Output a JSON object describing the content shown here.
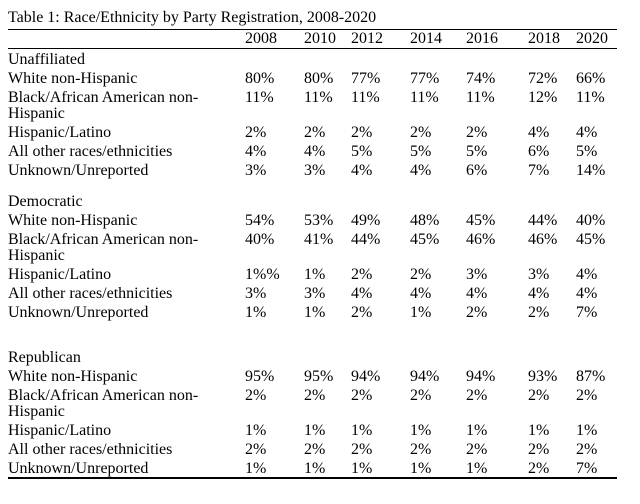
{
  "table": {
    "title": "Table 1: Race/Ethnicity by Party Registration, 2008-2020",
    "years": [
      "2008",
      "2010",
      "2012",
      "2014",
      "2016",
      "2018",
      "2020"
    ],
    "sections": [
      {
        "name": "Unaffiliated",
        "rows": [
          {
            "label": "White non-Hispanic",
            "values": [
              "80%",
              "80%",
              "77%",
              "77%",
              "74%",
              "72%",
              "66%"
            ]
          },
          {
            "label": "Black/African American non-Hispanic",
            "values": [
              "11%",
              "11%",
              "11%",
              "11%",
              "11%",
              "12%",
              "11%"
            ]
          },
          {
            "label": "Hispanic/Latino",
            "values": [
              "2%",
              "2%",
              "2%",
              "2%",
              "2%",
              "4%",
              "4%"
            ]
          },
          {
            "label": "All other races/ethnicities",
            "values": [
              "4%",
              "4%",
              "5%",
              "5%",
              "5%",
              "6%",
              "5%"
            ]
          },
          {
            "label": "Unknown/Unreported",
            "values": [
              "3%",
              "3%",
              "4%",
              "4%",
              "6%",
              "7%",
              "14%"
            ]
          }
        ]
      },
      {
        "name": "Democratic",
        "rows": [
          {
            "label": "White non-Hispanic",
            "values": [
              "54%",
              "53%",
              "49%",
              "48%",
              "45%",
              "44%",
              "40%"
            ]
          },
          {
            "label": "Black/African American non-Hispanic",
            "values": [
              "40%",
              "41%",
              "44%",
              "45%",
              "46%",
              "46%",
              "45%"
            ]
          },
          {
            "label": "Hispanic/Latino",
            "values": [
              "1%%",
              "1%",
              "2%",
              "2%",
              "3%",
              "3%",
              "4%"
            ]
          },
          {
            "label": "All other races/ethnicities",
            "values": [
              "3%",
              "3%",
              "4%",
              "4%",
              "4%",
              "4%",
              "4%"
            ]
          },
          {
            "label": "Unknown/Unreported",
            "values": [
              "1%",
              "1%",
              "2%",
              "1%",
              "2%",
              "2%",
              "7%"
            ]
          }
        ]
      },
      {
        "name": "Republican",
        "rows": [
          {
            "label": "White non-Hispanic",
            "values": [
              "95%",
              "95%",
              "94%",
              "94%",
              "94%",
              "93%",
              "87%"
            ]
          },
          {
            "label": "Black/African American non-Hispanic",
            "values": [
              "2%",
              "2%",
              "2%",
              "2%",
              "2%",
              "2%",
              "2%"
            ]
          },
          {
            "label": "Hispanic/Latino",
            "values": [
              "1%",
              "1%",
              "1%",
              "1%",
              "1%",
              "1%",
              "1%"
            ]
          },
          {
            "label": "All other races/ethnicities",
            "values": [
              "2%",
              "2%",
              "2%",
              "2%",
              "2%",
              "2%",
              "2%"
            ]
          },
          {
            "label": "Unknown/Unreported",
            "values": [
              "1%",
              "1%",
              "1%",
              "1%",
              "1%",
              "2%",
              "7%"
            ]
          }
        ]
      }
    ]
  },
  "chart_data": {
    "type": "table",
    "title": "Table 1: Race/Ethnicity by Party Registration, 2008-2020",
    "columns": [
      "2008",
      "2010",
      "2012",
      "2014",
      "2016",
      "2018",
      "2020"
    ],
    "groups": [
      {
        "group": "Unaffiliated",
        "rows": {
          "White non-Hispanic": [
            "80%",
            "80%",
            "77%",
            "77%",
            "74%",
            "72%",
            "66%"
          ],
          "Black/African American non-Hispanic": [
            "11%",
            "11%",
            "11%",
            "11%",
            "11%",
            "12%",
            "11%"
          ],
          "Hispanic/Latino": [
            "2%",
            "2%",
            "2%",
            "2%",
            "2%",
            "4%",
            "4%"
          ],
          "All other races/ethnicities": [
            "4%",
            "4%",
            "5%",
            "5%",
            "5%",
            "6%",
            "5%"
          ],
          "Unknown/Unreported": [
            "3%",
            "3%",
            "4%",
            "4%",
            "6%",
            "7%",
            "14%"
          ]
        }
      },
      {
        "group": "Democratic",
        "rows": {
          "White non-Hispanic": [
            "54%",
            "53%",
            "49%",
            "48%",
            "45%",
            "44%",
            "40%"
          ],
          "Black/African American non-Hispanic": [
            "40%",
            "41%",
            "44%",
            "45%",
            "46%",
            "46%",
            "45%"
          ],
          "Hispanic/Latino": [
            "1%%",
            "1%",
            "2%",
            "2%",
            "3%",
            "3%",
            "4%"
          ],
          "All other races/ethnicities": [
            "3%",
            "3%",
            "4%",
            "4%",
            "4%",
            "4%",
            "4%"
          ],
          "Unknown/Unreported": [
            "1%",
            "1%",
            "2%",
            "1%",
            "2%",
            "2%",
            "7%"
          ]
        }
      },
      {
        "group": "Republican",
        "rows": {
          "White non-Hispanic": [
            "95%",
            "95%",
            "94%",
            "94%",
            "94%",
            "93%",
            "87%"
          ],
          "Black/African American non-Hispanic": [
            "2%",
            "2%",
            "2%",
            "2%",
            "2%",
            "2%",
            "2%"
          ],
          "Hispanic/Latino": [
            "1%",
            "1%",
            "1%",
            "1%",
            "1%",
            "1%",
            "1%"
          ],
          "All other races/ethnicities": [
            "2%",
            "2%",
            "2%",
            "2%",
            "2%",
            "2%",
            "2%"
          ],
          "Unknown/Unreported": [
            "1%",
            "1%",
            "1%",
            "1%",
            "1%",
            "2%",
            "7%"
          ]
        }
      }
    ]
  }
}
